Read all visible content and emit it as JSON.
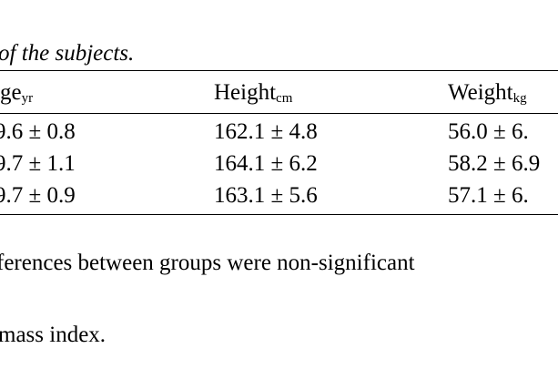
{
  "caption": "of the subjects.",
  "table": {
    "header": [
      {
        "main": "ge",
        "sub": "yr"
      },
      {
        "main": "Height",
        "sub": "cm"
      },
      {
        "main": "Weight",
        "sub": "kg"
      }
    ],
    "rows": [
      [
        "9.6 ± 0.8",
        "162.1 ± 4.8",
        "56.0 ± 6."
      ],
      [
        "9.7 ± 1.1",
        "164.1 ± 6.2",
        "58.2 ± 6.9"
      ],
      [
        "9.7 ± 0.9",
        "163.1 ± 5.6",
        "57.1 ± 6."
      ]
    ]
  },
  "notes": [
    "ferences between groups were non-significant",
    "mass index."
  ]
}
